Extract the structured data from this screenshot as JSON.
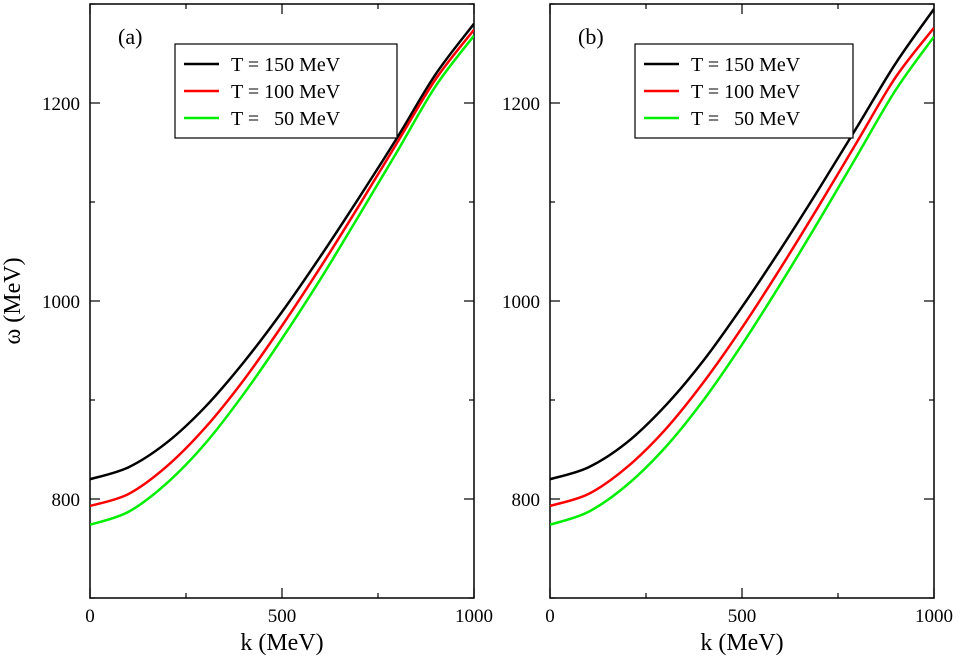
{
  "chart_data": [
    {
      "type": "line",
      "panel_label": "(a)",
      "xlabel": "k (MeV)",
      "ylabel": "ω (MeV)",
      "xlim": [
        0,
        1000
      ],
      "ylim": [
        700,
        1300
      ],
      "xticks": [
        0,
        500,
        1000
      ],
      "yticks": [
        800,
        1000,
        1200
      ],
      "legend_position": "top-center",
      "x": [
        0,
        100,
        200,
        300,
        400,
        500,
        600,
        700,
        800,
        900,
        1000
      ],
      "series": [
        {
          "name": "T = 150 MeV",
          "color": "#000000",
          "values": [
            820,
            832,
            857,
            893,
            938,
            989,
            1045,
            1104,
            1165,
            1229,
            1280
          ]
        },
        {
          "name": "T = 100 MeV",
          "color": "#ff0000",
          "values": [
            793,
            805,
            833,
            872,
            920,
            975,
            1034,
            1096,
            1160,
            1224,
            1274
          ]
        },
        {
          "name": "T =   50 MeV",
          "color": "#00ee00",
          "values": [
            774,
            787,
            816,
            856,
            906,
            962,
            1022,
            1086,
            1151,
            1217,
            1268
          ]
        }
      ]
    },
    {
      "type": "line",
      "panel_label": "(b)",
      "xlabel": "k (MeV)",
      "ylabel": "",
      "xlim": [
        0,
        1000
      ],
      "ylim": [
        700,
        1300
      ],
      "xticks": [
        0,
        500,
        1000
      ],
      "yticks": [
        800,
        1000,
        1200
      ],
      "legend_position": "top-center",
      "x": [
        0,
        100,
        200,
        300,
        400,
        500,
        600,
        700,
        800,
        900,
        1000
      ],
      "series": [
        {
          "name": "T = 150 MeV",
          "color": "#000000",
          "values": [
            820,
            832,
            857,
            894,
            940,
            994,
            1052,
            1113,
            1176,
            1240,
            1295
          ]
        },
        {
          "name": "T = 100 MeV",
          "color": "#ff0000",
          "values": [
            793,
            805,
            832,
            870,
            918,
            973,
            1033,
            1096,
            1161,
            1226,
            1276
          ]
        },
        {
          "name": "T =   50 MeV",
          "color": "#00ee00",
          "values": [
            774,
            787,
            814,
            852,
            900,
            956,
            1017,
            1081,
            1147,
            1213,
            1267
          ]
        }
      ]
    }
  ]
}
